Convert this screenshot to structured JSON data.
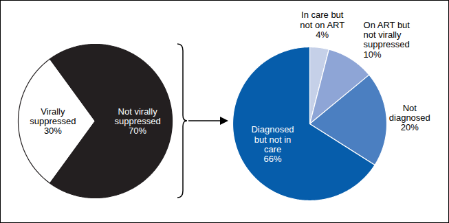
{
  "chart_data": [
    {
      "type": "pie",
      "categories": [
        "Virally suppressed",
        "Not virally suppressed"
      ],
      "values": [
        30,
        70
      ],
      "value_labels": [
        "30%",
        "70%"
      ],
      "colors": [
        "#ffffff",
        "#231f20"
      ],
      "data_labels": true
    },
    {
      "type": "pie",
      "categories": [
        "In care but not on ART",
        "On ART but not virally suppressed",
        "Not diagnosed",
        "Diagnosed but not in care"
      ],
      "values": [
        4,
        10,
        20,
        66
      ],
      "value_labels": [
        "4%",
        "10%",
        "20%",
        "66%"
      ],
      "colors": [
        "#c5d0e8",
        "#8ea5d6",
        "#4b7fc1",
        "#065dab"
      ],
      "data_labels": true
    }
  ]
}
